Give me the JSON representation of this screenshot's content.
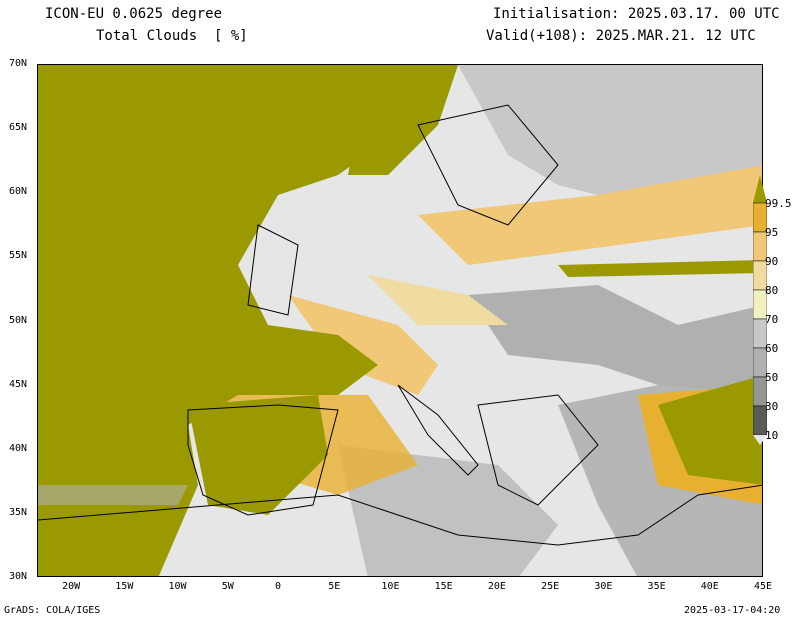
{
  "header": {
    "model": "ICON-EU 0.0625 degree",
    "variable": "Total Clouds  [ %]",
    "init": "Initialisation: 2025.03.17. 00 UTC",
    "valid": "Valid(+108): 2025.MAR.21. 12 UTC"
  },
  "footer": {
    "left": "GrADS: COLA/IGES",
    "right": "2025-03-17-04:20"
  },
  "axes": {
    "lon_range": [
      -23.2,
      45
    ],
    "lat_range": [
      30,
      70
    ],
    "lon_ticks": [
      {
        "v": -20,
        "l": "20W"
      },
      {
        "v": -15,
        "l": "15W"
      },
      {
        "v": -10,
        "l": "10W"
      },
      {
        "v": -5,
        "l": "5W"
      },
      {
        "v": 0,
        "l": "0"
      },
      {
        "v": 5,
        "l": "5E"
      },
      {
        "v": 10,
        "l": "10E"
      },
      {
        "v": 15,
        "l": "15E"
      },
      {
        "v": 20,
        "l": "20E"
      },
      {
        "v": 25,
        "l": "25E"
      },
      {
        "v": 30,
        "l": "30E"
      },
      {
        "v": 35,
        "l": "35E"
      },
      {
        "v": 40,
        "l": "40E"
      },
      {
        "v": 45,
        "l": "45E"
      }
    ],
    "lat_ticks": [
      {
        "v": 30,
        "l": "30N"
      },
      {
        "v": 35,
        "l": "35N"
      },
      {
        "v": 40,
        "l": "40N"
      },
      {
        "v": 45,
        "l": "45N"
      },
      {
        "v": 50,
        "l": "50N"
      },
      {
        "v": 55,
        "l": "55N"
      },
      {
        "v": 60,
        "l": "60N"
      },
      {
        "v": 65,
        "l": "65N"
      },
      {
        "v": 70,
        "l": "70N"
      }
    ]
  },
  "legend": {
    "levels": [
      "10",
      "30",
      "50",
      "60",
      "70",
      "80",
      "90",
      "95",
      "99.5"
    ],
    "colors": {
      "below": "#e6e6e6",
      "10-30": "#5a5a5a",
      "30-50": "#969696",
      "50-60": "#b0b0b0",
      "60-70": "#c8c8c8",
      "70-80": "#f0f0c0",
      "80-90": "#f0dca0",
      "90-95": "#f0c878",
      "95-99.5": "#e8b030",
      "above": "#9a9a00"
    }
  }
}
